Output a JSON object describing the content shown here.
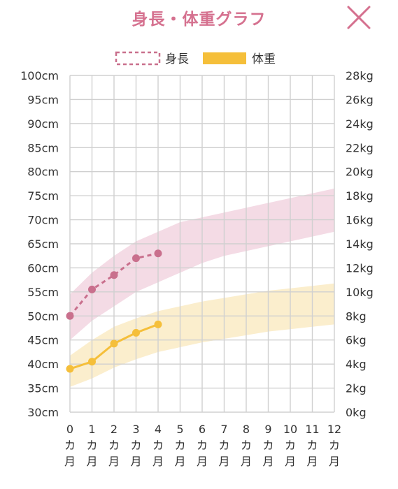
{
  "header": {
    "title": "身長・体重グラフ",
    "close_icon": "close-icon"
  },
  "colors": {
    "height": "#c9708d",
    "height_band": "#f3d7e2",
    "weight": "#f5bf3a",
    "weight_band": "#fbecc8",
    "grid": "#d0d0d0",
    "title": "#d5718f"
  },
  "chart_data": {
    "type": "line",
    "legend": {
      "placement": "top-center",
      "items": [
        {
          "name": "身長",
          "style": "dashed",
          "color": "#c9708d"
        },
        {
          "name": "体重",
          "style": "solid",
          "color": "#f5bf3a"
        }
      ]
    },
    "x": [
      0,
      1,
      2,
      3,
      4,
      5,
      6,
      7,
      8,
      9,
      10,
      11,
      12
    ],
    "x_tick_labels": [
      [
        "0",
        "カ",
        "月"
      ],
      [
        "1",
        "カ",
        "月"
      ],
      [
        "2",
        "カ",
        "月"
      ],
      [
        "3",
        "カ",
        "月"
      ],
      [
        "4",
        "カ",
        "月"
      ],
      [
        "5",
        "カ",
        "月"
      ],
      [
        "6",
        "カ",
        "月"
      ],
      [
        "7",
        "カ",
        "月"
      ],
      [
        "8",
        "カ",
        "月"
      ],
      [
        "9",
        "カ",
        "月"
      ],
      [
        "10",
        "カ",
        "月"
      ],
      [
        "11",
        "カ",
        "月"
      ],
      [
        "12",
        "カ",
        "月"
      ]
    ],
    "y_left": {
      "unit": "cm",
      "ylim": [
        30,
        100
      ],
      "ticks": [
        "100cm",
        "95cm",
        "90cm",
        "85cm",
        "80cm",
        "75cm",
        "70cm",
        "65cm",
        "60cm",
        "55cm",
        "50cm",
        "45cm",
        "40cm",
        "35cm",
        "30cm"
      ]
    },
    "y_right": {
      "unit": "kg",
      "ylim": [
        0,
        28
      ],
      "ticks": [
        "28kg",
        "26kg",
        "24kg",
        "22kg",
        "20kg",
        "18kg",
        "16kg",
        "14kg",
        "12kg",
        "10kg",
        "8kg",
        "6kg",
        "4kg",
        "2kg",
        "0kg"
      ]
    },
    "grid": true,
    "series": [
      {
        "name": "身長",
        "axis": "left",
        "style": "dashed",
        "x": [
          0,
          1,
          2,
          3,
          4
        ],
        "values": [
          50,
          55.5,
          58.5,
          62,
          63
        ]
      },
      {
        "name": "体重",
        "axis": "right",
        "style": "solid",
        "x": [
          0,
          1,
          2,
          3,
          4
        ],
        "values": [
          3.6,
          4.2,
          5.7,
          6.6,
          7.3
        ]
      }
    ],
    "bands": [
      {
        "series": "身長",
        "axis": "left",
        "x": [
          0,
          1,
          2,
          3,
          4,
          5,
          6,
          7,
          8,
          9,
          10,
          11,
          12
        ],
        "upper": [
          54.5,
          59,
          62.5,
          65.5,
          67.5,
          69.5,
          70.5,
          71.5,
          72.5,
          73.5,
          74.5,
          75.5,
          76.5
        ],
        "lower": [
          45,
          49,
          52,
          55,
          57,
          59,
          61,
          62.5,
          63.5,
          64.5,
          65.5,
          66.5,
          67.5
        ]
      },
      {
        "series": "体重",
        "axis": "right",
        "x": [
          0,
          1,
          2,
          3,
          4,
          5,
          6,
          7,
          8,
          9,
          10,
          11,
          12
        ],
        "upper": [
          4.7,
          6,
          7.1,
          7.8,
          8.4,
          8.8,
          9.2,
          9.5,
          9.8,
          10.1,
          10.3,
          10.5,
          10.7
        ],
        "lower": [
          2.1,
          2.8,
          3.7,
          4.4,
          5,
          5.4,
          5.8,
          6.1,
          6.4,
          6.7,
          6.9,
          7.1,
          7.3
        ]
      }
    ]
  }
}
